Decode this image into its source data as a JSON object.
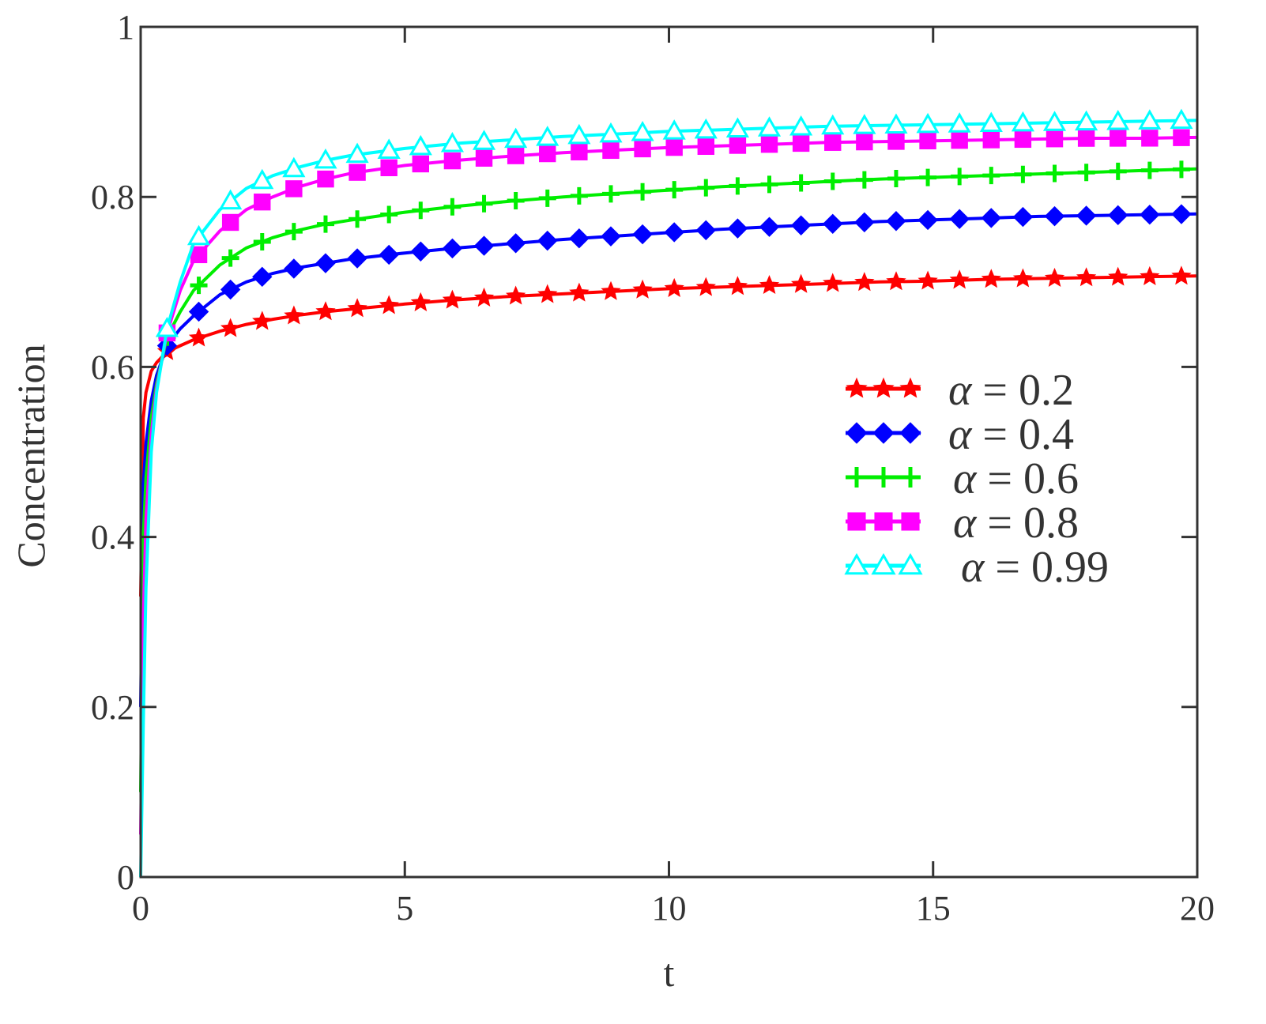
{
  "chart_data": {
    "type": "line",
    "title": "",
    "xlabel": "t",
    "ylabel": "Concentration",
    "xlim": [
      0,
      20
    ],
    "ylim": [
      0,
      1
    ],
    "xticks": [
      0,
      5,
      10,
      15,
      20
    ],
    "xtick_labels": [
      "0",
      "5",
      "10",
      "15",
      "20"
    ],
    "yticks": [
      0,
      0.2,
      0.4,
      0.6,
      0.8,
      1
    ],
    "ytick_labels": [
      "0",
      "0.2",
      "0.4",
      "0.6",
      "0.8",
      "1"
    ],
    "grid": false,
    "legend_position": "right-middle",
    "series": [
      {
        "name": "α = 0.2",
        "legend_symbol": "α",
        "legend_value": "= 0.2",
        "color": "#ff0000",
        "marker": "star",
        "x": [
          0,
          0.05,
          0.1,
          0.2,
          0.3,
          0.5,
          0.75,
          1,
          1.5,
          2,
          2.5,
          3,
          3.5,
          4,
          5,
          6,
          7,
          8,
          9,
          10,
          11,
          12,
          13,
          14,
          15,
          16,
          17,
          18,
          19,
          20
        ],
        "y": [
          0.33,
          0.54,
          0.57,
          0.595,
          0.605,
          0.618,
          0.625,
          0.632,
          0.642,
          0.65,
          0.656,
          0.661,
          0.665,
          0.668,
          0.674,
          0.679,
          0.683,
          0.686,
          0.689,
          0.692,
          0.694,
          0.696,
          0.698,
          0.7,
          0.701,
          0.703,
          0.704,
          0.705,
          0.706,
          0.707
        ]
      },
      {
        "name": "α = 0.4",
        "legend_symbol": "α",
        "legend_value": "= 0.4",
        "color": "#0000ff",
        "marker": "diamond",
        "x": [
          0,
          0.05,
          0.1,
          0.2,
          0.3,
          0.5,
          0.75,
          1,
          1.5,
          2,
          2.5,
          3,
          3.5,
          4,
          5,
          6,
          7,
          8,
          9,
          10,
          11,
          12,
          13,
          14,
          15,
          16,
          17,
          18,
          19,
          20
        ],
        "y": [
          0.2,
          0.46,
          0.51,
          0.56,
          0.59,
          0.625,
          0.645,
          0.66,
          0.685,
          0.7,
          0.71,
          0.717,
          0.722,
          0.727,
          0.734,
          0.74,
          0.745,
          0.75,
          0.754,
          0.758,
          0.762,
          0.765,
          0.768,
          0.771,
          0.773,
          0.775,
          0.777,
          0.778,
          0.779,
          0.78
        ]
      },
      {
        "name": "α = 0.6",
        "legend_symbol": "α",
        "legend_value": "= 0.6",
        "color": "#00ee00",
        "marker": "plus",
        "x": [
          0,
          0.05,
          0.1,
          0.2,
          0.3,
          0.5,
          0.75,
          1,
          1.5,
          2,
          2.5,
          3,
          3.5,
          4,
          5,
          6,
          7,
          8,
          9,
          10,
          11,
          12,
          13,
          14,
          15,
          16,
          17,
          18,
          19,
          20
        ],
        "y": [
          0.1,
          0.4,
          0.47,
          0.54,
          0.58,
          0.635,
          0.665,
          0.69,
          0.72,
          0.74,
          0.752,
          0.761,
          0.768,
          0.773,
          0.782,
          0.789,
          0.795,
          0.8,
          0.804,
          0.808,
          0.812,
          0.815,
          0.818,
          0.821,
          0.823,
          0.825,
          0.827,
          0.829,
          0.831,
          0.833
        ]
      },
      {
        "name": "α = 0.8",
        "legend_symbol": "α",
        "legend_value": "= 0.8",
        "color": "#ff00ff",
        "marker": "square",
        "x": [
          0,
          0.05,
          0.1,
          0.2,
          0.3,
          0.5,
          0.75,
          1,
          1.5,
          2,
          2.5,
          3,
          3.5,
          4,
          5,
          6,
          7,
          8,
          9,
          10,
          11,
          12,
          13,
          14,
          15,
          16,
          17,
          18,
          19,
          20
        ],
        "y": [
          0.05,
          0.3,
          0.42,
          0.52,
          0.575,
          0.64,
          0.69,
          0.725,
          0.76,
          0.785,
          0.8,
          0.812,
          0.821,
          0.828,
          0.837,
          0.843,
          0.848,
          0.852,
          0.855,
          0.858,
          0.86,
          0.862,
          0.864,
          0.865,
          0.866,
          0.867,
          0.868,
          0.869,
          0.869,
          0.87
        ]
      },
      {
        "name": "α = 0.99",
        "legend_symbol": "α",
        "legend_value": "= 0.99",
        "color": "#00ffff",
        "marker": "triangle",
        "x": [
          0,
          0.05,
          0.1,
          0.2,
          0.3,
          0.5,
          0.75,
          1,
          1.5,
          2,
          2.5,
          3,
          3.5,
          4,
          5,
          6,
          7,
          8,
          9,
          10,
          11,
          12,
          13,
          14,
          15,
          16,
          17,
          18,
          19,
          20
        ],
        "y": [
          0.0,
          0.18,
          0.34,
          0.5,
          0.57,
          0.645,
          0.7,
          0.745,
          0.785,
          0.81,
          0.825,
          0.835,
          0.843,
          0.849,
          0.857,
          0.863,
          0.867,
          0.871,
          0.874,
          0.877,
          0.879,
          0.881,
          0.883,
          0.884,
          0.885,
          0.886,
          0.887,
          0.888,
          0.889,
          0.89
        ]
      }
    ]
  }
}
